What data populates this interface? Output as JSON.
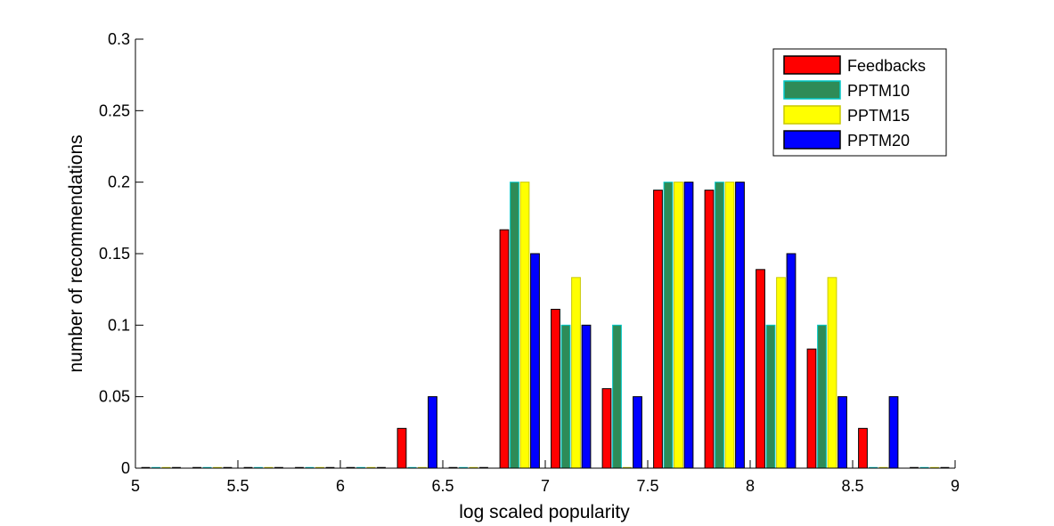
{
  "chart_data": {
    "type": "bar",
    "title": "",
    "xlabel": "log scaled popularity",
    "ylabel": "number of recommendations",
    "xlim": [
      5,
      9
    ],
    "ylim": [
      0,
      0.3
    ],
    "xticks": [
      "5",
      "5.5",
      "6",
      "6.5",
      "7",
      "7.5",
      "8",
      "8.5",
      "9"
    ],
    "yticks": [
      "0",
      "0.05",
      "0.1",
      "0.15",
      "0.2",
      "0.25",
      "0.3"
    ],
    "grid": false,
    "legend_position": "top-right",
    "bin_centers": [
      5.125,
      5.375,
      5.625,
      5.875,
      6.125,
      6.375,
      6.625,
      6.875,
      7.125,
      7.375,
      7.625,
      7.875,
      8.125,
      8.375,
      8.625,
      8.875
    ],
    "series": [
      {
        "name": "Feedbacks",
        "color": "#ff0000",
        "edge": "#000000",
        "values": [
          0,
          0,
          0,
          0,
          0,
          0.0278,
          0,
          0.1667,
          0.1111,
          0.0556,
          0.1944,
          0.1944,
          0.1389,
          0.0833,
          0.0278,
          0
        ]
      },
      {
        "name": "PPTM10",
        "color": "#2e8b57",
        "edge": "#00c8c8",
        "values": [
          0,
          0,
          0,
          0,
          0,
          0,
          0,
          0.2,
          0.1,
          0.1,
          0.2,
          0.2,
          0.1,
          0.1,
          0,
          0
        ]
      },
      {
        "name": "PPTM15",
        "color": "#ffff00",
        "edge": "#c8c800",
        "values": [
          0,
          0,
          0,
          0,
          0,
          0,
          0,
          0.2,
          0.1333,
          0,
          0.2,
          0.2,
          0.1333,
          0.1333,
          0,
          0
        ]
      },
      {
        "name": "PPTM20",
        "color": "#0000ff",
        "edge": "#000000",
        "values": [
          0,
          0,
          0,
          0,
          0,
          0.05,
          0,
          0.15,
          0.1,
          0.05,
          0.2,
          0.2,
          0.15,
          0.05,
          0.05,
          0
        ]
      }
    ]
  }
}
